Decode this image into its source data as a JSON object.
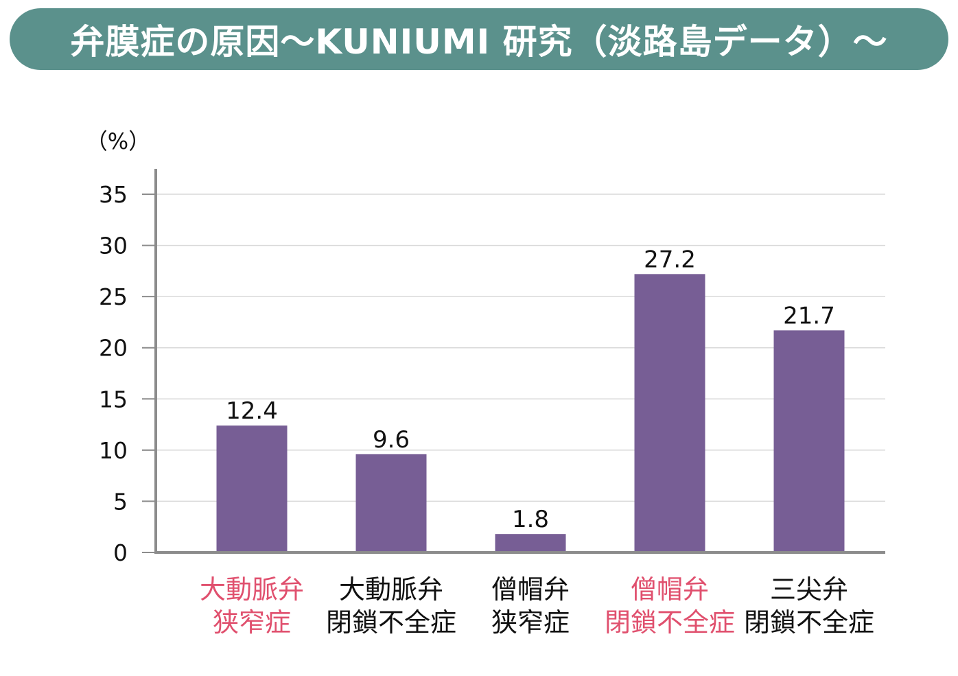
{
  "title": "弁膜症の原因〜KUNIUMI 研究（淡路島データ）〜",
  "colors": {
    "banner": "#5b918c",
    "bar": "#775e95",
    "highlight_label": "#e0506e",
    "normal_label": "#111111",
    "grid": "#d9d9d9",
    "axis": "#8c8c8c"
  },
  "chart_data": {
    "type": "bar",
    "unit_label": "（%）",
    "ylim": [
      0,
      35
    ],
    "yticks": [
      0,
      5,
      10,
      15,
      20,
      25,
      30,
      35
    ],
    "grid": true,
    "categories": [
      {
        "lines": [
          "大動脈弁",
          "狭窄症"
        ],
        "highlight": true
      },
      {
        "lines": [
          "大動脈弁",
          "閉鎖不全症"
        ],
        "highlight": false
      },
      {
        "lines": [
          "僧帽弁",
          "狭窄症"
        ],
        "highlight": false
      },
      {
        "lines": [
          "僧帽弁",
          "閉鎖不全症"
        ],
        "highlight": true
      },
      {
        "lines": [
          "三尖弁",
          "閉鎖不全症"
        ],
        "highlight": false
      }
    ],
    "values": [
      12.4,
      9.6,
      1.8,
      27.2,
      21.7
    ],
    "value_labels": [
      "12.4",
      "9.6",
      "1.8",
      "27.2",
      "21.7"
    ]
  }
}
